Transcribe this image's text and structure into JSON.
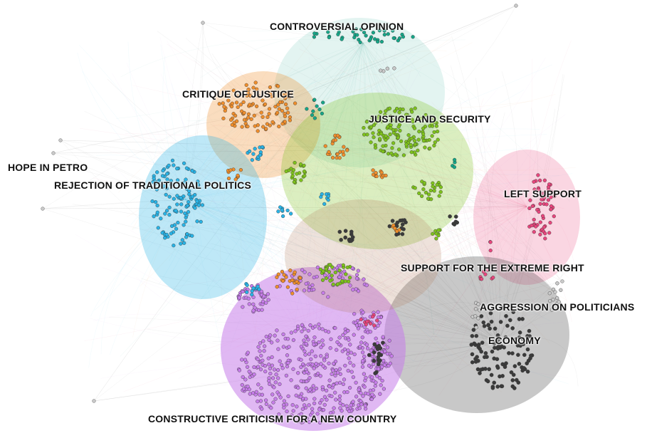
{
  "colors": {
    "purple": "#c77dea",
    "gray": "#3b3b3b",
    "green": "#7ec21c",
    "orange": "#ef8e2c",
    "cyan": "#29b3e6",
    "pink": "#e8467d",
    "teal": "#16a688",
    "lightgray": "#c9c9c9"
  },
  "communities": [
    {
      "key": "controversial",
      "label": "CONTROVERSIAL OPINION",
      "color": "#16a688"
    },
    {
      "key": "critique",
      "label": "CRITIQUE OF JUSTICE",
      "color": "#ef8e2c"
    },
    {
      "key": "justice",
      "label": "JUSTICE AND SECURITY",
      "color": "#7ec21c"
    },
    {
      "key": "hope",
      "label": "HOPE IN PETRO",
      "color": "#c9c9c9"
    },
    {
      "key": "rejection",
      "label": "REJECTION OF TRADITIONAL POLITICS",
      "color": "#29b3e6"
    },
    {
      "key": "left",
      "label": "LEFT SUPPORT",
      "color": "#e8467d"
    },
    {
      "key": "extreme",
      "label": "SUPPORT FOR THE EXTREME RIGHT",
      "color": "#e8467d"
    },
    {
      "key": "aggression",
      "label": "AGGRESSION ON POLITICIANS",
      "color": "#c9c9c9"
    },
    {
      "key": "economy",
      "label": "ECONOMY",
      "color": "#3b3b3b"
    },
    {
      "key": "constructive",
      "label": "CONSTRUCTIVE CRITICISM FOR A NEW COUNTRY",
      "color": "#c77dea"
    }
  ]
}
